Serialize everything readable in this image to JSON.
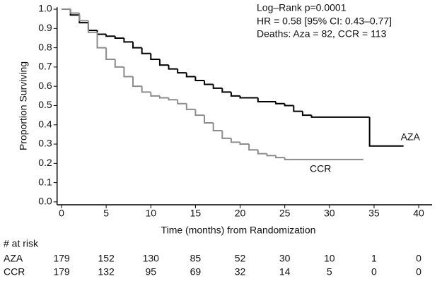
{
  "chart_data": {
    "type": "step",
    "ylabel": "Proportion Surviving",
    "xlabel": "Time (months) from Randomization",
    "annotations": [
      "Log–Rank  p=0.0001",
      "HR = 0.58 [95% CI: 0.43–0.77]",
      "Deaths: Aza = 82, CCR = 113"
    ],
    "xlim": [
      -0.5,
      41.5
    ],
    "ylim": [
      -0.015,
      1.01
    ],
    "xticks": [
      0,
      5,
      10,
      15,
      20,
      25,
      30,
      35,
      40
    ],
    "yticks": [
      {
        "value": 0,
        "label": "0.0"
      },
      0.1,
      0.2,
      0.3,
      0.4,
      0.5,
      0.6,
      0.7,
      0.8,
      0.9,
      {
        "value": 1,
        "label": "1.0"
      }
    ],
    "risk_title": "# at risk",
    "series": [
      {
        "name": "AZA",
        "color": "#000000",
        "x": [
          0,
          1,
          2,
          3,
          4,
          5,
          6,
          7,
          8,
          9,
          10,
          11,
          12,
          13,
          14,
          15,
          16,
          17,
          18,
          19,
          20,
          22,
          24,
          25,
          26,
          27,
          28,
          34.5,
          38.3
        ],
        "values": [
          1.0,
          0.97,
          0.93,
          0.89,
          0.87,
          0.86,
          0.85,
          0.83,
          0.8,
          0.77,
          0.74,
          0.71,
          0.69,
          0.67,
          0.65,
          0.63,
          0.61,
          0.59,
          0.57,
          0.55,
          0.54,
          0.52,
          0.51,
          0.5,
          0.47,
          0.45,
          0.44,
          0.29,
          0.29
        ],
        "at_risk": [
          "179",
          "152",
          "130",
          "85",
          "52",
          "30",
          "10",
          "1",
          "0"
        ]
      },
      {
        "name": "CCR",
        "color": "#8c8c8c",
        "x": [
          0,
          1,
          2,
          3,
          4,
          5,
          6,
          7,
          8,
          9,
          10,
          11,
          12,
          13,
          14,
          15,
          16,
          17,
          18,
          19,
          20,
          21,
          22,
          23,
          24,
          25,
          33.8
        ],
        "values": [
          1.0,
          0.98,
          0.94,
          0.88,
          0.8,
          0.74,
          0.7,
          0.65,
          0.6,
          0.57,
          0.55,
          0.54,
          0.53,
          0.51,
          0.48,
          0.45,
          0.41,
          0.37,
          0.33,
          0.31,
          0.3,
          0.27,
          0.25,
          0.24,
          0.23,
          0.22,
          0.22
        ],
        "at_risk": [
          "179",
          "132",
          "95",
          "69",
          "32",
          "14",
          "5",
          "0",
          "0"
        ]
      }
    ]
  }
}
